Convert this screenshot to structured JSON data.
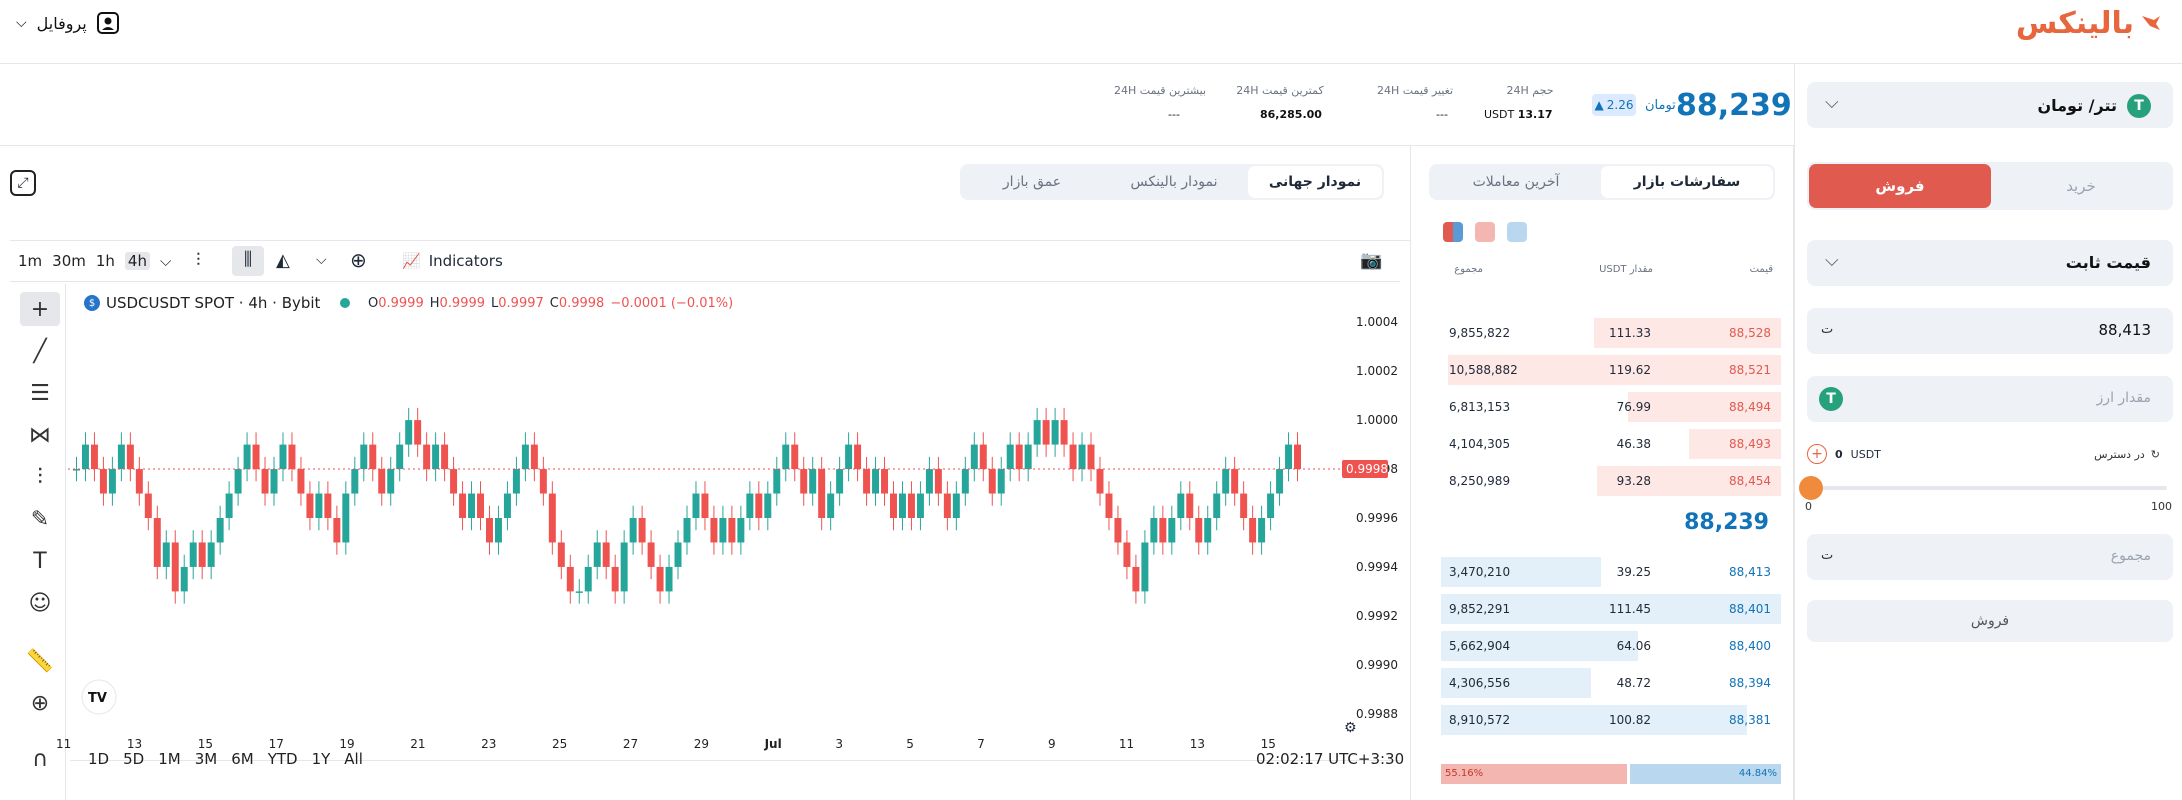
{
  "header": {
    "logo_text": "بالینکس",
    "profile_label": "پروفایل"
  },
  "ticker": {
    "price": "88,239",
    "currency": "تومان",
    "change": "2.26",
    "volume_label": "حجم 24H",
    "volume_value": "13.17",
    "volume_unit": "USDT",
    "change_label": "تغییر قیمت 24H",
    "change_value": "---",
    "low_label": "کمترین قیمت 24H",
    "low_value": "86,285.00",
    "high_label": "بیشترین قیمت 24H",
    "high_value": "---"
  },
  "order_panel": {
    "pair": "تتر/ تومان",
    "buy_tab": "خرید",
    "sell_tab": "فروش",
    "order_type": "قیمت ثابت",
    "price_value": "88,413",
    "amount_placeholder": "مقدار ارز",
    "available_label": "در دسترس",
    "available_value": "0",
    "available_unit": "USDT",
    "slider_min": "0",
    "slider_max": "100",
    "slider_value": 0,
    "total_placeholder": "مجموع",
    "submit": "فروش",
    "brand_color": "#e05a4f"
  },
  "book": {
    "tab_market": "سفارشات بازار",
    "tab_trades": "آخرین معاملات",
    "col_price": "قیمت",
    "col_amount": "مقدار USDT",
    "col_total": "مجموع",
    "asks": [
      {
        "price": "88,528",
        "amount": "111.33",
        "total": "9,855,822",
        "depth": 0.55
      },
      {
        "price": "88,521",
        "amount": "119.62",
        "total": "10,588,882",
        "depth": 0.98
      },
      {
        "price": "88,494",
        "amount": "76.99",
        "total": "6,813,153",
        "depth": 0.45
      },
      {
        "price": "88,493",
        "amount": "46.38",
        "total": "4,104,305",
        "depth": 0.27
      },
      {
        "price": "88,454",
        "amount": "93.28",
        "total": "8,250,989",
        "depth": 0.54
      }
    ],
    "mid_price": "88,239",
    "bids": [
      {
        "price": "88,413",
        "amount": "39.25",
        "total": "3,470,210",
        "depth": 0.47
      },
      {
        "price": "88,401",
        "amount": "111.45",
        "total": "9,852,291",
        "depth": 1.0
      },
      {
        "price": "88,400",
        "amount": "64.06",
        "total": "5,662,904",
        "depth": 0.58
      },
      {
        "price": "88,394",
        "amount": "48.72",
        "total": "4,306,556",
        "depth": 0.44
      },
      {
        "price": "88,381",
        "amount": "100.82",
        "total": "8,910,572",
        "depth": 0.9
      }
    ],
    "sell_pct": "55.16%",
    "buy_pct": "44.84%",
    "sell_ratio": 0.5516
  },
  "chart": {
    "tab_global": "نمودار جهانی",
    "tab_balinex": "نمودار بالینکس",
    "tab_depth": "عمق بازار",
    "intervals": [
      "1m",
      "30m",
      "1h",
      "4h"
    ],
    "active_interval": "4h",
    "indicators": "Indicators",
    "symbol": "USDCUSDT SPOT · 4h · Bybit",
    "ohlc": {
      "o_label": "O",
      "o": "0.9999",
      "h_label": "H",
      "h": "0.9999",
      "l_label": "L",
      "l": "0.9997",
      "c_label": "C",
      "c": "0.9998",
      "chg": "−0.0001 (−0.01%)"
    },
    "y_ticks": [
      "1.0004",
      "1.0002",
      "1.0000",
      "0.9998",
      "0.9996",
      "0.9994",
      "0.9992",
      "0.9990",
      "0.9988"
    ],
    "current_price": "0.9998",
    "x_ticks": [
      "11",
      "13",
      "15",
      "17",
      "19",
      "21",
      "23",
      "25",
      "27",
      "29",
      "Jul",
      "3",
      "5",
      "7",
      "9",
      "11",
      "13",
      "15"
    ],
    "ranges": [
      "1D",
      "5D",
      "1M",
      "3M",
      "6M",
      "YTD",
      "1Y",
      "All"
    ],
    "time": "02:02:17 UTC+3:30"
  },
  "chart_data": {
    "type": "candlestick",
    "title": "USDCUSDT SPOT · 4h · Bybit",
    "ylim": [
      0.99875,
      1.00045
    ],
    "x_range": [
      "Jun 11",
      "Jul 15"
    ],
    "series": [
      {
        "name": "USDCUSDT",
        "values": [
          0.9998,
          0.9999,
          0.9998,
          0.9997,
          0.9998,
          0.9999,
          0.9998,
          0.9997,
          0.9996,
          0.9994,
          0.9995,
          0.9993,
          0.9994,
          0.9995,
          0.9994,
          0.9995,
          0.9996,
          0.9997,
          0.9998,
          0.9999,
          0.9998,
          0.9997,
          0.9998,
          0.9999,
          0.9998,
          0.9997,
          0.9996,
          0.9997,
          0.9996,
          0.9995,
          0.9997,
          0.9998,
          0.9999,
          0.9998,
          0.9997,
          0.9998,
          0.9999,
          1.0,
          0.9999,
          0.9998,
          0.9999,
          0.9998,
          0.9997,
          0.9996,
          0.9997,
          0.9996,
          0.9995,
          0.9996,
          0.9997,
          0.9998,
          0.9999,
          0.9998,
          0.9997,
          0.9995,
          0.9994,
          0.9993,
          0.9993,
          0.9994,
          0.9995,
          0.9994,
          0.9993,
          0.9995,
          0.9996,
          0.9995,
          0.9994,
          0.9993,
          0.9994,
          0.9995,
          0.9996,
          0.9997,
          0.9996,
          0.9995,
          0.9996,
          0.9995,
          0.9996,
          0.9997,
          0.9996,
          0.9997,
          0.9998,
          0.9999,
          0.9998,
          0.9997,
          0.9998,
          0.9996,
          0.9997,
          0.9998,
          0.9999,
          0.9998,
          0.9997,
          0.9998,
          0.9997,
          0.9996,
          0.9997,
          0.9996,
          0.9997,
          0.9998,
          0.9997,
          0.9996,
          0.9997,
          0.9998,
          0.9999,
          0.9998,
          0.9997,
          0.9998,
          0.9999,
          0.9998,
          0.9999,
          1.0,
          0.9999,
          1.0,
          0.9999,
          0.9998,
          0.9999,
          0.9998,
          0.9997,
          0.9996,
          0.9995,
          0.9994,
          0.9993,
          0.9995,
          0.9996,
          0.9995,
          0.9996,
          0.9997,
          0.9996,
          0.9995,
          0.9996,
          0.9997,
          0.9998,
          0.9997,
          0.9996,
          0.9995,
          0.9996,
          0.9997,
          0.9998,
          0.9999,
          0.9998
        ]
      }
    ]
  }
}
